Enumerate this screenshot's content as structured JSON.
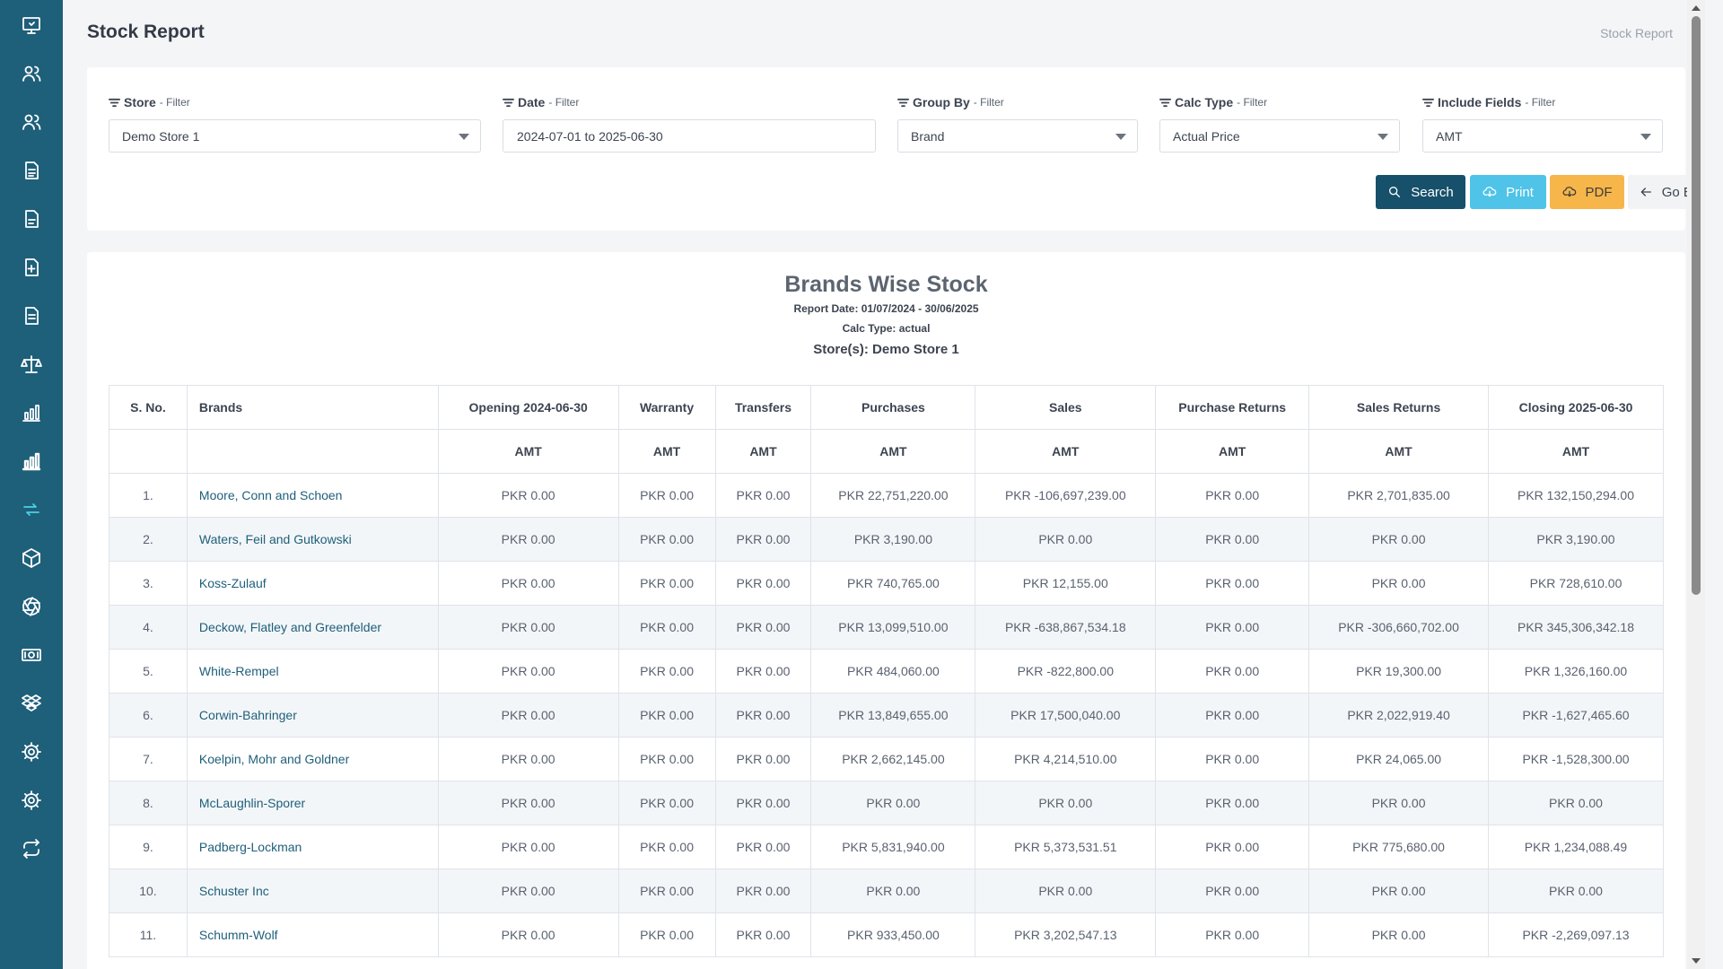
{
  "page": {
    "title": "Stock Report",
    "breadcrumb": "Stock Report"
  },
  "sidebar": {
    "accent": "#1e5f7a",
    "items": [
      {
        "icon": "monitor-icon"
      },
      {
        "icon": "users-icon"
      },
      {
        "icon": "users-icon"
      },
      {
        "icon": "document-icon"
      },
      {
        "icon": "document-icon"
      },
      {
        "icon": "document-add-icon"
      },
      {
        "icon": "document-icon"
      },
      {
        "icon": "scale-icon"
      },
      {
        "icon": "bar-chart-icon"
      },
      {
        "icon": "bar-chart-icon"
      },
      {
        "icon": "refresh-icon"
      },
      {
        "icon": "box-icon"
      },
      {
        "icon": "aperture-icon"
      },
      {
        "icon": "money-icon"
      },
      {
        "icon": "dropbox-icon"
      },
      {
        "icon": "gear-icon"
      },
      {
        "icon": "gear-icon"
      },
      {
        "icon": "repeat-icon"
      }
    ],
    "active_index": 10
  },
  "filters": [
    {
      "label": "Store",
      "suffix": "- Filter",
      "value": "Demo Store 1",
      "dropdown": true
    },
    {
      "label": "Date",
      "suffix": "- Filter",
      "value": "2024-07-01 to 2025-06-30",
      "dropdown": false
    },
    {
      "label": "Group By",
      "suffix": "- Filter",
      "value": "Brand",
      "dropdown": true
    },
    {
      "label": "Calc Type",
      "suffix": "- Filter",
      "value": "Actual Price",
      "dropdown": true
    },
    {
      "label": "Include Fields",
      "suffix": "- Filter",
      "value": "AMT",
      "dropdown": true
    }
  ],
  "buttons": {
    "search": "Search",
    "print": "Print",
    "pdf": "PDF",
    "back": "Go Back"
  },
  "report": {
    "title": "Brands Wise Stock",
    "date": "Report Date: 01/07/2024 - 30/06/2025",
    "calc": "Calc Type: actual",
    "stores": "Store(s): Demo Store 1"
  },
  "table": {
    "headers": [
      "S. No.",
      "Brands",
      "Opening 2024-06-30",
      "Warranty",
      "Transfers",
      "Purchases",
      "Sales",
      "Purchase Returns",
      "Sales Returns",
      "Closing 2025-06-30"
    ],
    "subheaders": [
      "",
      "",
      "AMT",
      "AMT",
      "AMT",
      "AMT",
      "AMT",
      "AMT",
      "AMT",
      "AMT"
    ],
    "rows": [
      [
        "1.",
        "Moore, Conn and Schoen",
        "PKR 0.00",
        "PKR 0.00",
        "PKR 0.00",
        "PKR 22,751,220.00",
        "PKR -106,697,239.00",
        "PKR 0.00",
        "PKR 2,701,835.00",
        "PKR 132,150,294.00"
      ],
      [
        "2.",
        "Waters, Feil and Gutkowski",
        "PKR 0.00",
        "PKR 0.00",
        "PKR 0.00",
        "PKR 3,190.00",
        "PKR 0.00",
        "PKR 0.00",
        "PKR 0.00",
        "PKR 3,190.00"
      ],
      [
        "3.",
        "Koss-Zulauf",
        "PKR 0.00",
        "PKR 0.00",
        "PKR 0.00",
        "PKR 740,765.00",
        "PKR 12,155.00",
        "PKR 0.00",
        "PKR 0.00",
        "PKR 728,610.00"
      ],
      [
        "4.",
        "Deckow, Flatley and Greenfelder",
        "PKR 0.00",
        "PKR 0.00",
        "PKR 0.00",
        "PKR 13,099,510.00",
        "PKR -638,867,534.18",
        "PKR 0.00",
        "PKR -306,660,702.00",
        "PKR 345,306,342.18"
      ],
      [
        "5.",
        "White-Rempel",
        "PKR 0.00",
        "PKR 0.00",
        "PKR 0.00",
        "PKR 484,060.00",
        "PKR -822,800.00",
        "PKR 0.00",
        "PKR 19,300.00",
        "PKR 1,326,160.00"
      ],
      [
        "6.",
        "Corwin-Bahringer",
        "PKR 0.00",
        "PKR 0.00",
        "PKR 0.00",
        "PKR 13,849,655.00",
        "PKR 17,500,040.00",
        "PKR 0.00",
        "PKR 2,022,919.40",
        "PKR -1,627,465.60"
      ],
      [
        "7.",
        "Koelpin, Mohr and Goldner",
        "PKR 0.00",
        "PKR 0.00",
        "PKR 0.00",
        "PKR 2,662,145.00",
        "PKR 4,214,510.00",
        "PKR 0.00",
        "PKR 24,065.00",
        "PKR -1,528,300.00"
      ],
      [
        "8.",
        "McLaughlin-Sporer",
        "PKR 0.00",
        "PKR 0.00",
        "PKR 0.00",
        "PKR 0.00",
        "PKR 0.00",
        "PKR 0.00",
        "PKR 0.00",
        "PKR 0.00"
      ],
      [
        "9.",
        "Padberg-Lockman",
        "PKR 0.00",
        "PKR 0.00",
        "PKR 0.00",
        "PKR 5,831,940.00",
        "PKR 5,373,531.51",
        "PKR 0.00",
        "PKR 775,680.00",
        "PKR 1,234,088.49"
      ],
      [
        "10.",
        "Schuster Inc",
        "PKR 0.00",
        "PKR 0.00",
        "PKR 0.00",
        "PKR 0.00",
        "PKR 0.00",
        "PKR 0.00",
        "PKR 0.00",
        "PKR 0.00"
      ],
      [
        "11.",
        "Schumm-Wolf",
        "PKR 0.00",
        "PKR 0.00",
        "PKR 0.00",
        "PKR 933,450.00",
        "PKR 3,202,547.13",
        "PKR 0.00",
        "PKR 0.00",
        "PKR -2,269,097.13"
      ]
    ]
  }
}
